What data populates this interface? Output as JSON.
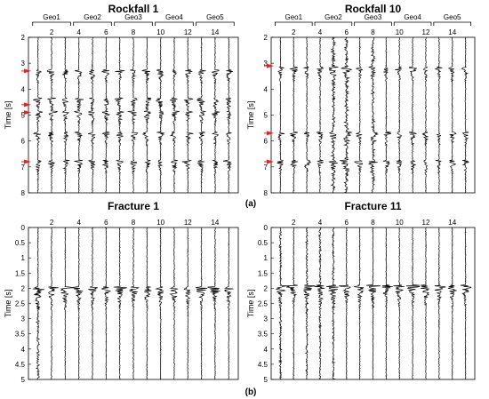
{
  "chart_data": [
    {
      "type": "line",
      "title": "Rockfall 1",
      "xlabel": "",
      "ylabel": "Time [s]",
      "x_ticks": [
        "2",
        "4",
        "6",
        "8",
        "10",
        "12",
        "14"
      ],
      "y_ticks": [
        "2",
        "3",
        "4",
        "5",
        "6",
        "7",
        "8"
      ],
      "ylim": [
        2,
        8
      ],
      "traces": 15,
      "groups": [
        {
          "name": "Geo1",
          "traces": [
            1,
            3
          ]
        },
        {
          "name": "Geo2",
          "traces": [
            4,
            6
          ]
        },
        {
          "name": "Geo3",
          "traces": [
            7,
            9
          ]
        },
        {
          "name": "Geo4",
          "traces": [
            10,
            12
          ]
        },
        {
          "name": "Geo5",
          "traces": [
            13,
            15
          ]
        }
      ],
      "arrivals_s": [
        3.3,
        4.4,
        4.9,
        5.7,
        6.8
      ],
      "markers_s": [
        3.3,
        4.6,
        4.9,
        6.8
      ]
    },
    {
      "type": "line",
      "title": "Rockfall 10",
      "xlabel": "",
      "ylabel": "Time [s]",
      "x_ticks": [
        "2",
        "4",
        "6",
        "8",
        "10",
        "12",
        "14"
      ],
      "y_ticks": [
        "2",
        "3",
        "4",
        "5",
        "6",
        "7",
        "8"
      ],
      "ylim": [
        2,
        8
      ],
      "traces": 15,
      "groups": [
        {
          "name": "Geo1",
          "traces": [
            1,
            3
          ]
        },
        {
          "name": "Geo2",
          "traces": [
            4,
            6
          ]
        },
        {
          "name": "Geo3",
          "traces": [
            7,
            9
          ]
        },
        {
          "name": "Geo4",
          "traces": [
            10,
            12
          ]
        },
        {
          "name": "Geo5",
          "traces": [
            13,
            15
          ]
        }
      ],
      "arrivals_s": [
        3.2,
        5.7,
        6.8
      ],
      "markers_s": [
        3.1,
        5.7,
        6.8
      ]
    },
    {
      "type": "line",
      "title": "Fracture 1",
      "xlabel": "",
      "ylabel": "Time [s]",
      "x_ticks": [
        "2",
        "4",
        "6",
        "8",
        "10",
        "12",
        "14"
      ],
      "y_ticks": [
        "0",
        "0.5",
        "1",
        "1.5",
        "2",
        "2.5",
        "3",
        "3.5",
        "4",
        "4.5",
        "5"
      ],
      "ylim": [
        0,
        5
      ],
      "traces": 15,
      "groups": [],
      "arrivals_s": [
        2.0
      ],
      "markers_s": []
    },
    {
      "type": "line",
      "title": "Fracture 11",
      "xlabel": "",
      "ylabel": "Time [s]",
      "x_ticks": [
        "2",
        "4",
        "6",
        "8",
        "10",
        "12",
        "14"
      ],
      "y_ticks": [
        "0",
        "0.5",
        "1",
        "1.5",
        "2",
        "2.5",
        "3",
        "3.5",
        "4",
        "4.5",
        "5"
      ],
      "ylim": [
        0,
        5
      ],
      "traces": 15,
      "groups": [],
      "arrivals_s": [
        1.95
      ],
      "markers_s": []
    }
  ],
  "panel_labels": [
    "(a)",
    "(b)"
  ],
  "colors": {
    "trace": "#000000",
    "marker": "#e8231c",
    "frame": "#000000"
  }
}
